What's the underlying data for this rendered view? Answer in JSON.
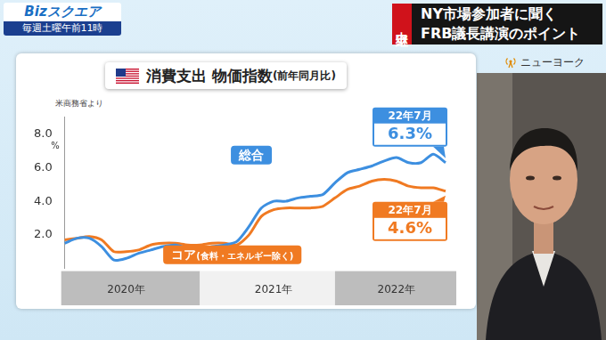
{
  "page": {
    "program": "Bizスクエア",
    "schedule": "毎週土曜午前11時",
    "badge": "中継",
    "headline": [
      "NY市場参加者に聞く",
      "FRB議長講演のポイント"
    ],
    "location": "ニューヨーク"
  },
  "chart_data": {
    "type": "line",
    "title": "消費支出 物価指数(前年同月比)",
    "source": "米商務省より",
    "y_label": "%",
    "categories": [
      null,
      null,
      null,
      null,
      null,
      "2020年",
      null,
      null,
      null,
      null,
      null,
      null,
      null,
      null,
      null,
      null,
      null,
      "2021年",
      null,
      null,
      null,
      null,
      null,
      null,
      null,
      null,
      null,
      "2022年",
      null,
      null,
      null,
      null
    ],
    "series": [
      {
        "name": "総合",
        "color": "#3d8fe0",
        "values": [
          1.5,
          1.8,
          1.8,
          1.3,
          0.5,
          0.6,
          0.9,
          1.1,
          1.3,
          1.4,
          1.2,
          1.1,
          1.3,
          1.4,
          1.6,
          2.5,
          3.6,
          4.0,
          4.0,
          4.2,
          4.3,
          4.4,
          5.1,
          5.7,
          5.9,
          6.1,
          6.4,
          6.6,
          6.3,
          6.3,
          6.8,
          6.3
        ]
      },
      {
        "name": "コア(食料・エネルギー除く)",
        "color": "#f07a22",
        "values": [
          1.7,
          1.8,
          1.9,
          1.7,
          1.0,
          1.0,
          1.1,
          1.4,
          1.5,
          1.5,
          1.4,
          1.4,
          1.5,
          1.5,
          1.4,
          2.0,
          3.1,
          3.5,
          3.6,
          3.6,
          3.6,
          3.7,
          4.2,
          4.7,
          4.9,
          5.2,
          5.3,
          5.2,
          4.9,
          4.8,
          4.8,
          4.6
        ]
      }
    ],
    "annotations": [
      {
        "series": "総合",
        "date": "22年7月",
        "label": "6.3%"
      },
      {
        "series": "コア(食料・エネルギー除く)",
        "date": "22年7月",
        "label": "4.6%"
      }
    ],
    "ylim": [
      0,
      9
    ],
    "yticks": [
      {
        "value": 2,
        "label": "2.0"
      },
      {
        "value": 4,
        "label": "4.0"
      },
      {
        "value": 6,
        "label": "6.0"
      },
      {
        "value": 8,
        "label": "8.0"
      }
    ],
    "grid": false
  }
}
